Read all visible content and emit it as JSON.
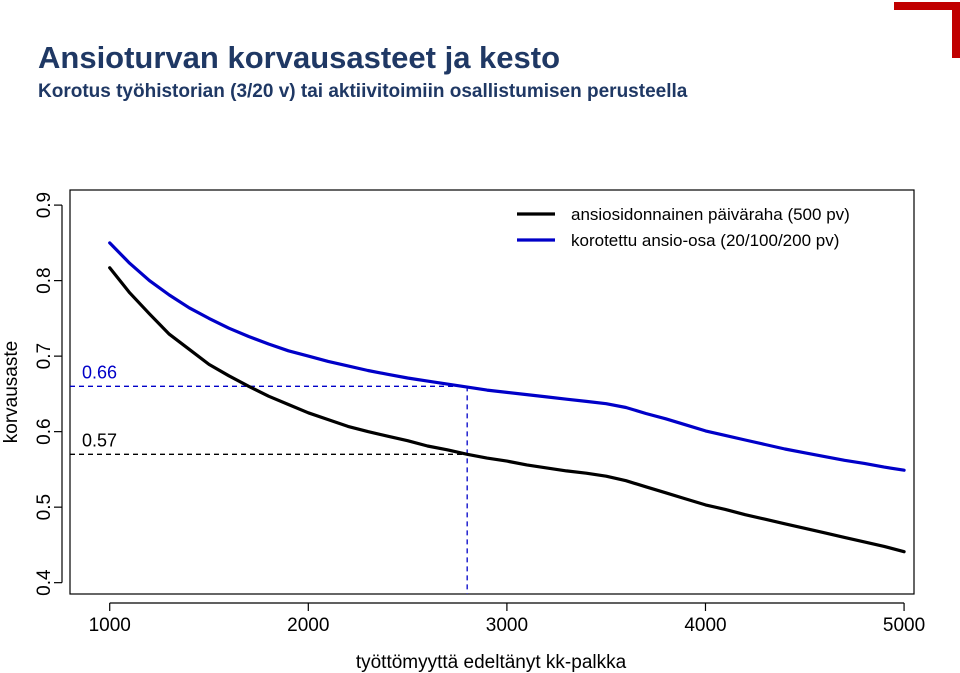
{
  "header": {
    "title": "Ansioturvan korvausasteet ja kesto",
    "subtitle": "Korotus työhistorian (3/20 v) tai aktiivitoimiin osallistumisen perusteella"
  },
  "colors": {
    "title": "#1f3864",
    "logo": "#c00000",
    "series_black": "#000000",
    "series_blue": "#0000c8"
  },
  "chart_data": {
    "type": "line",
    "xlabel": "työttömyyttä edeltänyt kk-palkka",
    "ylabel": "korvausaste",
    "xlim": [
      800,
      5050
    ],
    "ylim": [
      0.385,
      0.92
    ],
    "x_ticks": [
      1000,
      2000,
      3000,
      4000,
      5000
    ],
    "x_tick_labels": [
      "1000",
      "2000",
      "3000",
      "4000",
      "5000"
    ],
    "y_ticks": [
      0.4,
      0.5,
      0.6,
      0.7,
      0.8,
      0.9
    ],
    "y_tick_labels": [
      "0.4",
      "0.5",
      "0.6",
      "0.7",
      "0.8",
      "0.9"
    ],
    "grid": false,
    "legend_position": "top-right",
    "series": [
      {
        "name": "ansiosidonnainen päiväraha (500 pv)",
        "color": "#000000",
        "x": [
          1000,
          1100,
          1200,
          1300,
          1400,
          1500,
          1600,
          1700,
          1800,
          1900,
          2000,
          2100,
          2200,
          2300,
          2400,
          2500,
          2600,
          2700,
          2800,
          2900,
          3000,
          3100,
          3200,
          3300,
          3400,
          3500,
          3600,
          3700,
          3800,
          3900,
          4000,
          4100,
          4200,
          4300,
          4400,
          4500,
          4600,
          4700,
          4800,
          4900,
          5000
        ],
        "y": [
          0.817,
          0.784,
          0.756,
          0.729,
          0.709,
          0.689,
          0.674,
          0.66,
          0.647,
          0.636,
          0.625,
          0.616,
          0.607,
          0.6,
          0.594,
          0.588,
          0.581,
          0.576,
          0.57,
          0.565,
          0.561,
          0.556,
          0.552,
          0.548,
          0.545,
          0.541,
          0.535,
          0.527,
          0.519,
          0.511,
          0.503,
          0.497,
          0.49,
          0.484,
          0.478,
          0.472,
          0.466,
          0.46,
          0.454,
          0.448,
          0.441
        ]
      },
      {
        "name": "korotettu ansio-osa (20/100/200 pv)",
        "color": "#0000c8",
        "x": [
          1000,
          1100,
          1200,
          1300,
          1400,
          1500,
          1600,
          1700,
          1800,
          1900,
          2000,
          2100,
          2200,
          2300,
          2400,
          2500,
          2600,
          2700,
          2800,
          2900,
          3000,
          3100,
          3200,
          3300,
          3400,
          3500,
          3600,
          3700,
          3800,
          3900,
          4000,
          4100,
          4200,
          4300,
          4400,
          4500,
          4600,
          4700,
          4800,
          4900,
          5000
        ],
        "y": [
          0.85,
          0.823,
          0.8,
          0.781,
          0.764,
          0.75,
          0.737,
          0.726,
          0.716,
          0.707,
          0.7,
          0.693,
          0.687,
          0.681,
          0.676,
          0.671,
          0.667,
          0.663,
          0.659,
          0.655,
          0.652,
          0.649,
          0.646,
          0.643,
          0.64,
          0.637,
          0.632,
          0.624,
          0.617,
          0.609,
          0.601,
          0.595,
          0.589,
          0.583,
          0.577,
          0.572,
          0.567,
          0.562,
          0.558,
          0.553,
          0.549
        ]
      }
    ],
    "annotations": [
      {
        "label": "0.66",
        "value": 0.66,
        "x": 2800,
        "color": "#0000c8"
      },
      {
        "label": "0.57",
        "value": 0.57,
        "x": 2800,
        "color": "#000000"
      }
    ]
  }
}
